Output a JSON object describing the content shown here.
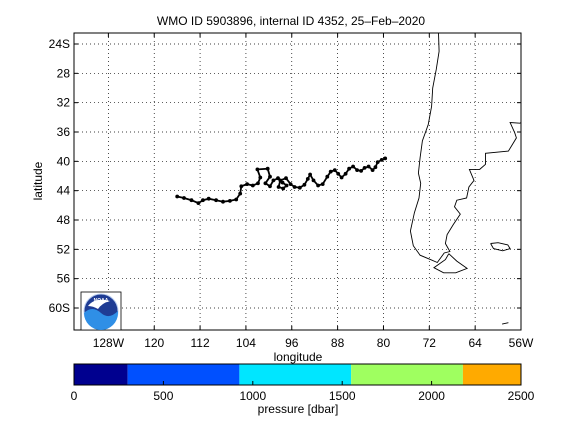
{
  "title": "WMO ID 5903896, internal ID 4352, 25–Feb–2020",
  "map": {
    "xlabel": "longitude",
    "ylabel": "latitude",
    "lon_range": [
      -134,
      -56
    ],
    "lat_range": [
      -63,
      -22.5
    ],
    "x_ticks": [
      {
        "lon": -128,
        "label": "128W"
      },
      {
        "lon": -120,
        "label": "120"
      },
      {
        "lon": -112,
        "label": "112"
      },
      {
        "lon": -104,
        "label": "104"
      },
      {
        "lon": -96,
        "label": "96"
      },
      {
        "lon": -88,
        "label": "88"
      },
      {
        "lon": -80,
        "label": "80"
      },
      {
        "lon": -72,
        "label": "72"
      },
      {
        "lon": -64,
        "label": "64"
      },
      {
        "lon": -56,
        "label": "56W"
      }
    ],
    "y_ticks": [
      {
        "lat": -24,
        "label": "24S"
      },
      {
        "lat": -28,
        "label": "28"
      },
      {
        "lat": -32,
        "label": "32"
      },
      {
        "lat": -36,
        "label": "36"
      },
      {
        "lat": -40,
        "label": "40"
      },
      {
        "lat": -44,
        "label": "44"
      },
      {
        "lat": -48,
        "label": "48"
      },
      {
        "lat": -52,
        "label": "52"
      },
      {
        "lat": -56,
        "label": "56"
      },
      {
        "lat": -60,
        "label": "60S"
      }
    ],
    "grid": true,
    "track_color": "#000000",
    "coast_color": "#000000",
    "logo_text": "NOAA"
  },
  "chart_data": {
    "type": "scatter",
    "title": "WMO ID 5903896, internal ID 4352, 25–Feb–2020",
    "xlabel": "longitude",
    "ylabel": "latitude",
    "xlim": [
      -134,
      -56
    ],
    "ylim": [
      -63,
      -22.5
    ],
    "grid": true,
    "series": [
      {
        "values": [
          [
            -116.0,
            -44.8
          ],
          [
            -114.8,
            -45.0
          ],
          [
            -113.5,
            -45.3
          ],
          [
            -112.3,
            -45.7
          ],
          [
            -111.5,
            -45.3
          ],
          [
            -110.5,
            -45.1
          ],
          [
            -109.2,
            -45.3
          ],
          [
            -108.0,
            -45.5
          ],
          [
            -106.8,
            -45.4
          ],
          [
            -105.7,
            -45.2
          ],
          [
            -105.0,
            -44.4
          ],
          [
            -104.8,
            -43.4
          ],
          [
            -103.8,
            -43.1
          ],
          [
            -102.8,
            -43.3
          ],
          [
            -101.9,
            -43.0
          ],
          [
            -101.5,
            -42.2
          ],
          [
            -102.0,
            -41.1
          ],
          [
            -100.2,
            -41.0
          ],
          [
            -99.8,
            -42.1
          ],
          [
            -100.6,
            -43.0
          ],
          [
            -99.8,
            -43.4
          ],
          [
            -99.2,
            -42.6
          ],
          [
            -98.4,
            -42.3
          ],
          [
            -97.6,
            -42.9
          ],
          [
            -96.9,
            -43.3
          ],
          [
            -97.5,
            -43.7
          ],
          [
            -98.3,
            -43.5
          ],
          [
            -98.0,
            -42.6
          ],
          [
            -97.0,
            -42.3
          ],
          [
            -96.2,
            -43.1
          ],
          [
            -95.5,
            -43.5
          ],
          [
            -94.6,
            -43.6
          ],
          [
            -93.8,
            -43.2
          ],
          [
            -93.2,
            -42.4
          ],
          [
            -92.8,
            -41.8
          ],
          [
            -92.2,
            -42.6
          ],
          [
            -91.4,
            -43.3
          ],
          [
            -90.6,
            -43.1
          ],
          [
            -89.8,
            -42.1
          ],
          [
            -89.2,
            -41.4
          ],
          [
            -88.5,
            -41.2
          ],
          [
            -87.9,
            -41.7
          ],
          [
            -87.3,
            -42.2
          ],
          [
            -86.6,
            -41.7
          ],
          [
            -86.0,
            -41.0
          ],
          [
            -85.3,
            -40.7
          ],
          [
            -84.6,
            -41.2
          ],
          [
            -83.9,
            -41.3
          ],
          [
            -83.3,
            -40.9
          ],
          [
            -82.6,
            -40.7
          ],
          [
            -81.9,
            -41.2
          ],
          [
            -81.4,
            -40.8
          ],
          [
            -81.0,
            -40.1
          ],
          [
            -80.3,
            -39.8
          ],
          [
            -79.7,
            -39.6
          ]
        ]
      }
    ]
  },
  "colorbar": {
    "label": "pressure [dbar]",
    "range": [
      0,
      2500
    ],
    "tick_labels": [
      {
        "value": 0,
        "label": "0"
      },
      {
        "value": 500,
        "label": "500"
      },
      {
        "value": 1000,
        "label": "1000"
      },
      {
        "value": 1500,
        "label": "1500"
      },
      {
        "value": 2000,
        "label": "2000"
      },
      {
        "value": 2500,
        "label": "2500"
      }
    ],
    "segments": [
      {
        "from": 0,
        "to": 300,
        "color": "#00008f"
      },
      {
        "from": 300,
        "to": 925,
        "color": "#0050ff"
      },
      {
        "from": 925,
        "to": 1550,
        "color": "#00e6ff"
      },
      {
        "from": 1550,
        "to": 2175,
        "color": "#9fff60"
      },
      {
        "from": 2175,
        "to": 2500,
        "color": "#ffaa00"
      }
    ]
  }
}
